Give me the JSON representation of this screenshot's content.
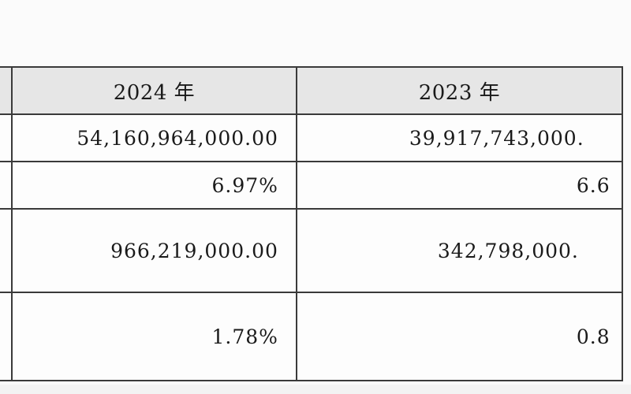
{
  "table": {
    "headers": [
      "",
      "2024 年",
      "2023 年"
    ],
    "rows": [
      [
        "",
        "54,160,964,000.00",
        "39,917,743,000."
      ],
      [
        "",
        "6.97%",
        "6.6"
      ],
      [
        "",
        "966,219,000.00",
        "342,798,000."
      ],
      [
        "",
        "1.78%",
        "0.8"
      ]
    ]
  }
}
